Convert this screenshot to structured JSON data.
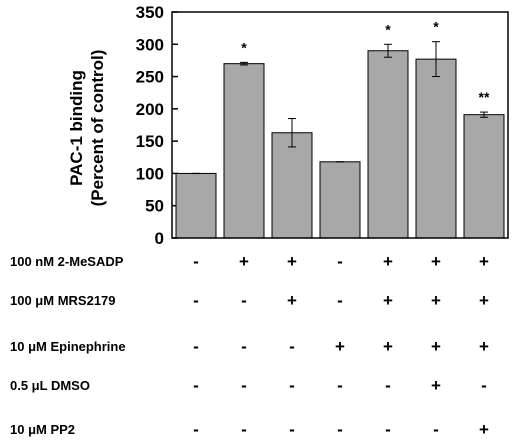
{
  "chart_data": {
    "type": "bar",
    "ylabel_lines": [
      "PAC-1 binding",
      "(Percent of control)"
    ],
    "ylim": [
      0,
      350
    ],
    "yticks": [
      0,
      50,
      100,
      150,
      200,
      250,
      300,
      350
    ],
    "grid": false,
    "bar_color": "#a8a8a8",
    "values": [
      100,
      270,
      163,
      118,
      290,
      277,
      191
    ],
    "errors": [
      0,
      2,
      22,
      0,
      10,
      27,
      4
    ],
    "significance": [
      "",
      "*",
      "",
      "",
      "*",
      "*",
      "**"
    ],
    "conditions": [
      {
        "label": "100 nM 2-MeSADP",
        "marks": [
          "-",
          "+",
          "+",
          "-",
          "+",
          "+",
          "+"
        ]
      },
      {
        "label": "100 μM MRS2179",
        "marks": [
          "-",
          "-",
          "+",
          "-",
          "+",
          "+",
          "+"
        ]
      },
      {
        "label": "10 μM Epinephrine",
        "marks": [
          "-",
          "-",
          "-",
          "+",
          "+",
          "+",
          "+"
        ]
      },
      {
        "label": "0.5 μL DMSO",
        "marks": [
          "-",
          "-",
          "-",
          "-",
          "-",
          "+",
          "-"
        ]
      },
      {
        "label": "10 μM PP2",
        "marks": [
          "-",
          "-",
          "-",
          "-",
          "-",
          "-",
          "+"
        ]
      }
    ]
  }
}
